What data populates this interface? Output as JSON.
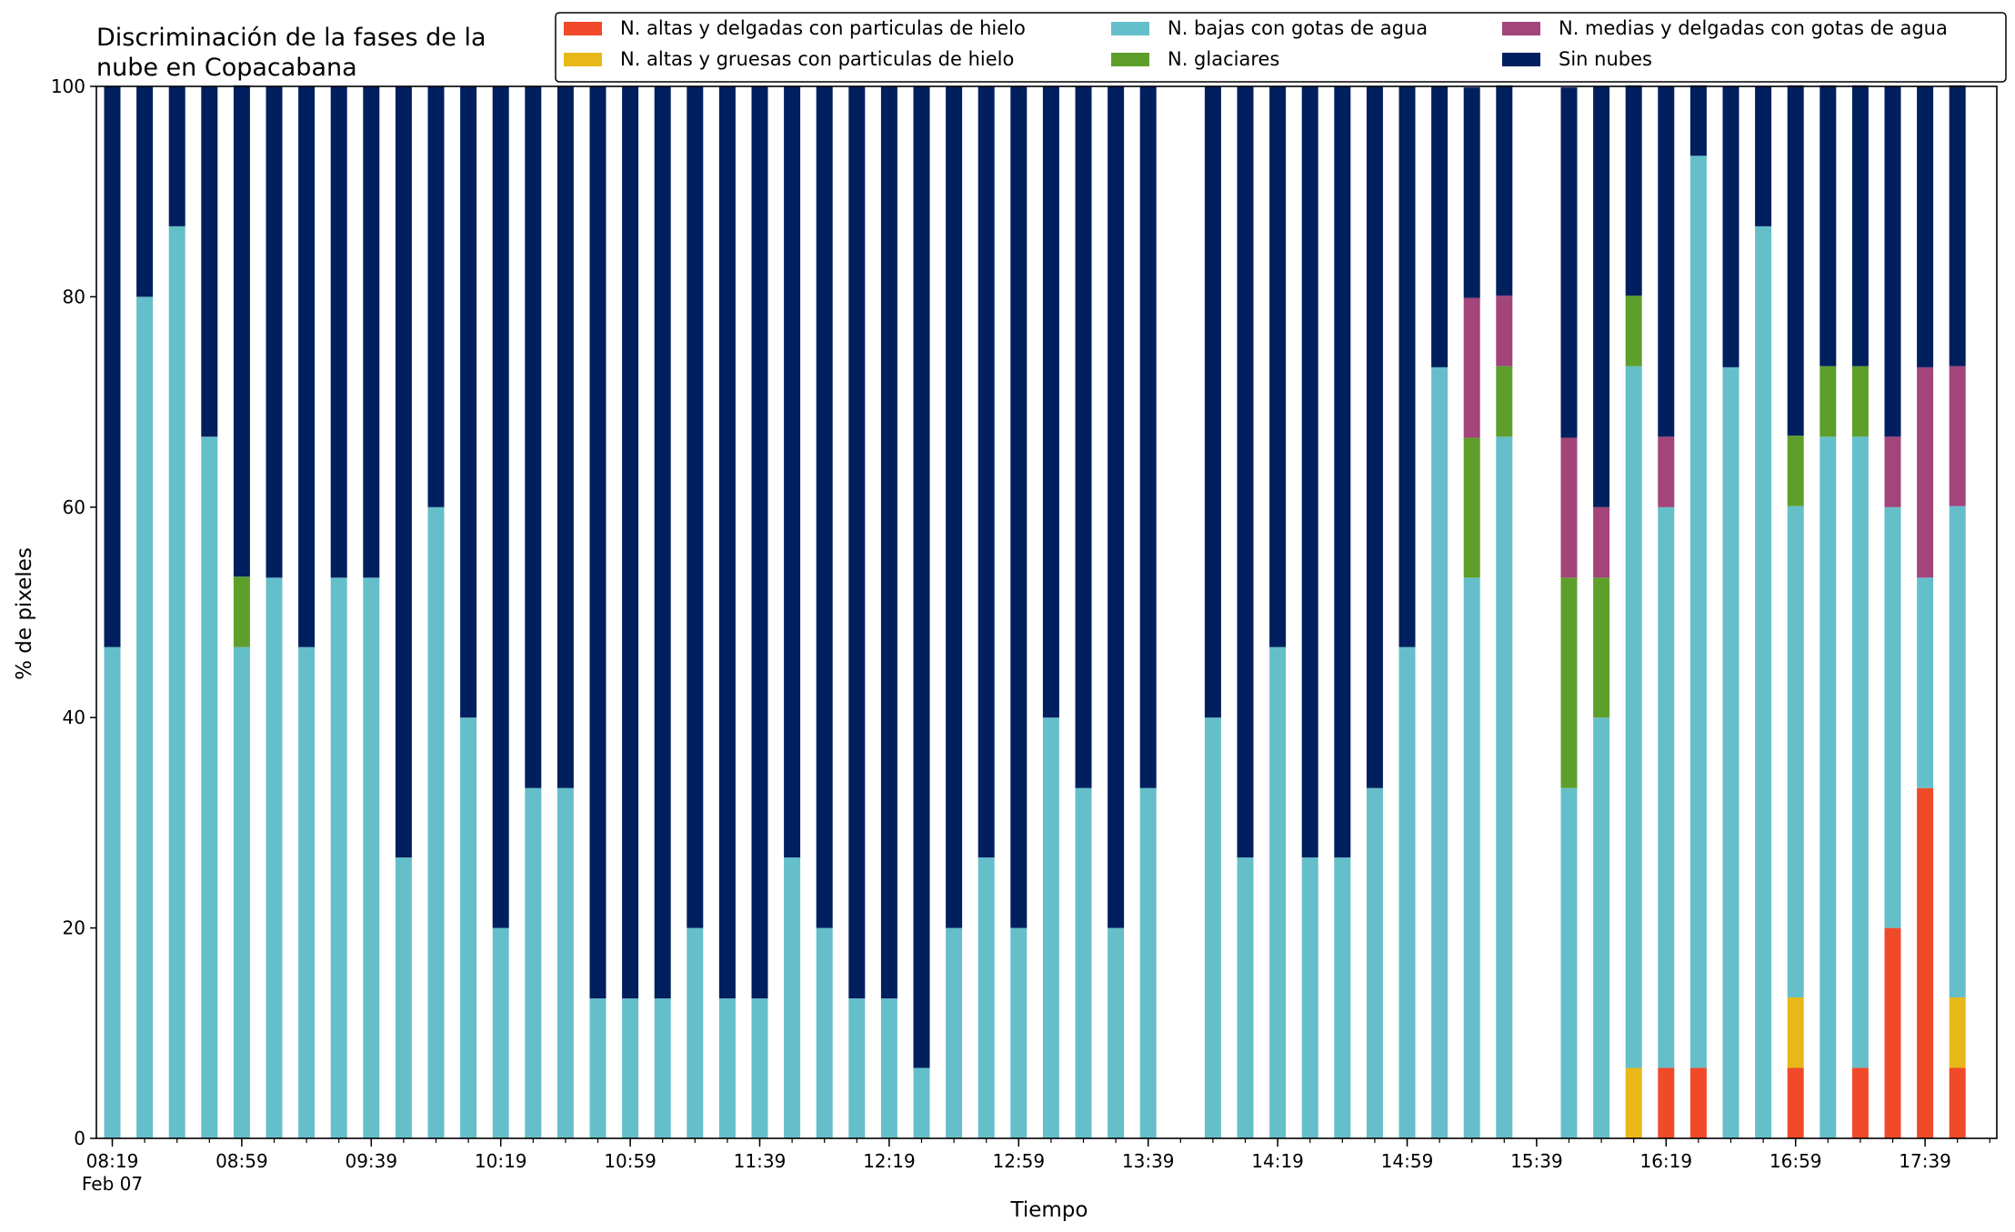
{
  "chart_data": {
    "type": "bar",
    "stacked": true,
    "title_lines": [
      "Discriminación de la fases de la",
      "nube en Copacabana"
    ],
    "xlabel": "Tiempo",
    "ylabel": "% de pixeles",
    "ylim": [
      0,
      100
    ],
    "yticks": [
      0,
      20,
      40,
      60,
      80,
      100
    ],
    "x_start": "08:19",
    "x_step_minutes": 10,
    "x_count": 59,
    "x_tick_labels": [
      {
        "index": 0,
        "label": "08:19",
        "sub": "Feb 07"
      },
      {
        "index": 4,
        "label": "08:59"
      },
      {
        "index": 8,
        "label": "09:39"
      },
      {
        "index": 12,
        "label": "10:19"
      },
      {
        "index": 16,
        "label": "10:59"
      },
      {
        "index": 20,
        "label": "11:39"
      },
      {
        "index": 24,
        "label": "12:19"
      },
      {
        "index": 28,
        "label": "12:59"
      },
      {
        "index": 32,
        "label": "13:39"
      },
      {
        "index": 36,
        "label": "14:19"
      },
      {
        "index": 40,
        "label": "14:59"
      },
      {
        "index": 44,
        "label": "15:39"
      },
      {
        "index": 48,
        "label": "16:19"
      },
      {
        "index": 52,
        "label": "16:59"
      },
      {
        "index": 56,
        "label": "17:39"
      }
    ],
    "legend_position": "top",
    "series": [
      {
        "name": "N. altas y delgadas con particulas de hielo",
        "color": "#f04a2a"
      },
      {
        "name": "N. altas y gruesas con particulas de hielo",
        "color": "#e8b819"
      },
      {
        "name": "N. bajas con gotas de agua",
        "color": "#65bfca"
      },
      {
        "name": "N. glaciares",
        "color": "#5e9f2c"
      },
      {
        "name": "N. medias y delgadas con gotas de agua",
        "color": "#a3447a"
      },
      {
        "name": "Sin nubes",
        "color": "#001f5e"
      }
    ],
    "bars": [
      {
        "i": 0,
        "v": [
          0,
          0,
          46.7,
          0,
          0,
          53.3
        ]
      },
      {
        "i": 1,
        "v": [
          0,
          0,
          80,
          0,
          0,
          20
        ]
      },
      {
        "i": 2,
        "v": [
          0,
          0,
          86.7,
          0,
          0,
          13.3
        ]
      },
      {
        "i": 3,
        "v": [
          0,
          0,
          66.7,
          0,
          0,
          33.3
        ]
      },
      {
        "i": 4,
        "v": [
          0,
          0,
          46.7,
          6.7,
          0,
          46.7
        ]
      },
      {
        "i": 5,
        "v": [
          0,
          0,
          53.3,
          0,
          0,
          46.7
        ]
      },
      {
        "i": 6,
        "v": [
          0,
          0,
          46.7,
          0,
          0,
          53.3
        ]
      },
      {
        "i": 7,
        "v": [
          0,
          0,
          53.3,
          0,
          0,
          46.7
        ]
      },
      {
        "i": 8,
        "v": [
          0,
          0,
          53.3,
          0,
          0,
          46.7
        ]
      },
      {
        "i": 9,
        "v": [
          0,
          0,
          26.7,
          0,
          0,
          73.3
        ]
      },
      {
        "i": 10,
        "v": [
          0,
          0,
          60,
          0,
          0,
          40
        ]
      },
      {
        "i": 11,
        "v": [
          0,
          0,
          40,
          0,
          0,
          60
        ]
      },
      {
        "i": 12,
        "v": [
          0,
          0,
          20,
          0,
          0,
          80
        ]
      },
      {
        "i": 13,
        "v": [
          0,
          0,
          33.3,
          0,
          0,
          66.7
        ]
      },
      {
        "i": 14,
        "v": [
          0,
          0,
          33.3,
          0,
          0,
          66.7
        ]
      },
      {
        "i": 15,
        "v": [
          0,
          0,
          13.3,
          0,
          0,
          86.7
        ]
      },
      {
        "i": 16,
        "v": [
          0,
          0,
          13.3,
          0,
          0,
          86.7
        ]
      },
      {
        "i": 17,
        "v": [
          0,
          0,
          13.3,
          0,
          0,
          86.7
        ]
      },
      {
        "i": 18,
        "v": [
          0,
          0,
          20,
          0,
          0,
          80
        ]
      },
      {
        "i": 19,
        "v": [
          0,
          0,
          13.3,
          0,
          0,
          86.7
        ]
      },
      {
        "i": 20,
        "v": [
          0,
          0,
          13.3,
          0,
          0,
          86.7
        ]
      },
      {
        "i": 21,
        "v": [
          0,
          0,
          26.7,
          0,
          0,
          73.3
        ]
      },
      {
        "i": 22,
        "v": [
          0,
          0,
          20,
          0,
          0,
          80
        ]
      },
      {
        "i": 23,
        "v": [
          0,
          0,
          13.3,
          0,
          0,
          86.7
        ]
      },
      {
        "i": 24,
        "v": [
          0,
          0,
          13.3,
          0,
          0,
          86.7
        ]
      },
      {
        "i": 25,
        "v": [
          0,
          0,
          6.7,
          0,
          0,
          93.3
        ]
      },
      {
        "i": 26,
        "v": [
          0,
          0,
          20,
          0,
          0,
          80
        ]
      },
      {
        "i": 27,
        "v": [
          0,
          0,
          26.7,
          0,
          0,
          73.3
        ]
      },
      {
        "i": 28,
        "v": [
          0,
          0,
          20,
          0,
          0,
          80
        ]
      },
      {
        "i": 29,
        "v": [
          0,
          0,
          40,
          0,
          0,
          60
        ]
      },
      {
        "i": 30,
        "v": [
          0,
          0,
          33.3,
          0,
          0,
          66.7
        ]
      },
      {
        "i": 31,
        "v": [
          0,
          0,
          20,
          0,
          0,
          80
        ]
      },
      {
        "i": 32,
        "v": [
          0,
          0,
          33.3,
          0,
          0,
          66.7
        ]
      },
      {
        "i": 34,
        "v": [
          0,
          0,
          40,
          0,
          0,
          60
        ]
      },
      {
        "i": 35,
        "v": [
          0,
          0,
          26.7,
          0,
          0,
          73.3
        ]
      },
      {
        "i": 36,
        "v": [
          0,
          0,
          46.7,
          0,
          0,
          53.3
        ]
      },
      {
        "i": 37,
        "v": [
          0,
          0,
          26.7,
          0,
          0,
          73.3
        ]
      },
      {
        "i": 38,
        "v": [
          0,
          0,
          26.7,
          0,
          0,
          73.3
        ]
      },
      {
        "i": 39,
        "v": [
          0,
          0,
          33.3,
          0,
          0,
          66.7
        ]
      },
      {
        "i": 40,
        "v": [
          0,
          0,
          46.7,
          0,
          0,
          53.3
        ]
      },
      {
        "i": 41,
        "v": [
          0,
          0,
          73.3,
          0,
          0,
          26.7
        ]
      },
      {
        "i": 42,
        "v": [
          0,
          0,
          53.3,
          13.3,
          13.3,
          20
        ]
      },
      {
        "i": 43,
        "v": [
          0,
          0,
          66.7,
          6.7,
          6.7,
          20
        ]
      },
      {
        "i": 45,
        "v": [
          0,
          0,
          33.3,
          20,
          13.3,
          33.3
        ]
      },
      {
        "i": 46,
        "v": [
          0,
          0,
          40,
          13.3,
          6.7,
          40
        ]
      },
      {
        "i": 47,
        "v": [
          0,
          6.7,
          66.7,
          6.7,
          0,
          20
        ]
      },
      {
        "i": 48,
        "v": [
          6.7,
          0,
          53.3,
          0,
          6.7,
          33.3
        ]
      },
      {
        "i": 49,
        "v": [
          6.7,
          0,
          86.7,
          0,
          0,
          6.7
        ]
      },
      {
        "i": 50,
        "v": [
          0,
          0,
          73.3,
          0,
          0,
          26.7
        ]
      },
      {
        "i": 51,
        "v": [
          0,
          0,
          86.7,
          0,
          0,
          13.3
        ]
      },
      {
        "i": 52,
        "v": [
          6.7,
          6.7,
          46.7,
          6.7,
          0,
          33.3
        ]
      },
      {
        "i": 53,
        "v": [
          0,
          0,
          66.7,
          6.7,
          0,
          26.7
        ]
      },
      {
        "i": 54,
        "v": [
          6.7,
          0,
          60,
          6.7,
          0,
          26.7
        ]
      },
      {
        "i": 55,
        "v": [
          20,
          0,
          40,
          0,
          6.7,
          33.3
        ]
      },
      {
        "i": 56,
        "v": [
          33.3,
          0,
          20,
          0,
          20,
          26.7
        ]
      },
      {
        "i": 57,
        "v": [
          6.7,
          6.7,
          46.7,
          0,
          13.3,
          26.7
        ]
      }
    ]
  }
}
